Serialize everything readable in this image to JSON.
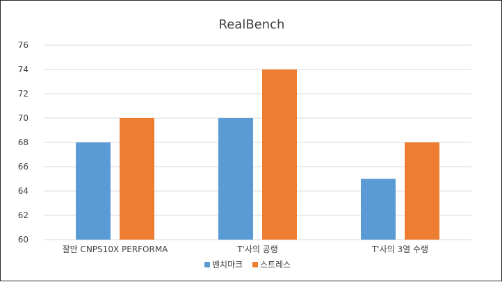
{
  "chart_data": {
    "type": "bar",
    "title": "RealBench",
    "categories": [
      "잘만 CNPS10X PERFORMA",
      "T'사의 공랭",
      "T'사의 3열 수랭"
    ],
    "series": [
      {
        "name": "벤치마크",
        "values": [
          68,
          70,
          65
        ],
        "color": "#5b9bd5"
      },
      {
        "name": "스트레스",
        "values": [
          70,
          74,
          68
        ],
        "color": "#ed7d31"
      }
    ],
    "ylim": [
      60,
      76
    ],
    "yticks": [
      60,
      62,
      64,
      66,
      68,
      70,
      72,
      74,
      76
    ],
    "grid": true,
    "legend_position": "bottom"
  }
}
